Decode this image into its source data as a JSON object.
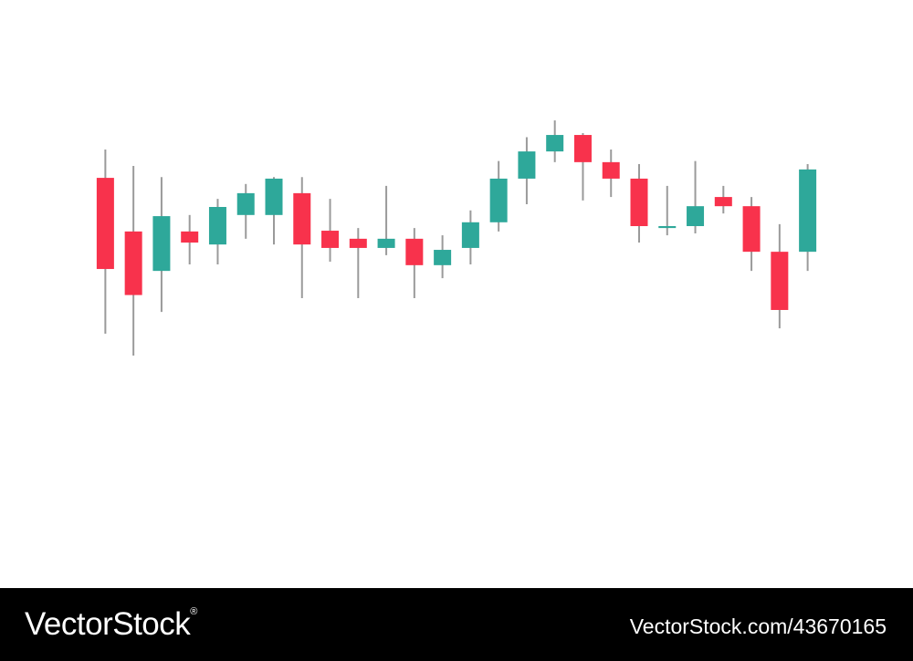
{
  "chart_data": {
    "type": "candlestick",
    "title": "",
    "xlabel": "",
    "ylabel": "",
    "grid": false,
    "axes_visible": false,
    "ylim": [
      0,
      100
    ],
    "up_color": "#2ea89a",
    "down_color": "#f8324c",
    "wick_color": "#9a9a9a",
    "candles": [
      {
        "open": 72.6,
        "high": 80.0,
        "low": 31.9,
        "close": 48.8
      },
      {
        "open": 58.6,
        "high": 75.7,
        "low": 26.2,
        "close": 42.0
      },
      {
        "open": 48.3,
        "high": 72.8,
        "low": 37.6,
        "close": 62.6
      },
      {
        "open": 58.6,
        "high": 62.9,
        "low": 50.0,
        "close": 55.7
      },
      {
        "open": 55.2,
        "high": 67.1,
        "low": 50.0,
        "close": 65.0
      },
      {
        "open": 62.9,
        "high": 71.0,
        "low": 56.7,
        "close": 68.6
      },
      {
        "open": 62.9,
        "high": 72.8,
        "low": 55.2,
        "close": 72.4
      },
      {
        "open": 68.6,
        "high": 72.8,
        "low": 41.2,
        "close": 55.2
      },
      {
        "open": 58.8,
        "high": 67.1,
        "low": 50.7,
        "close": 54.3
      },
      {
        "open": 56.7,
        "high": 59.5,
        "low": 41.2,
        "close": 54.3
      },
      {
        "open": 54.3,
        "high": 70.5,
        "low": 52.4,
        "close": 56.7
      },
      {
        "open": 56.7,
        "high": 59.5,
        "low": 41.2,
        "close": 49.8
      },
      {
        "open": 49.8,
        "high": 57.6,
        "low": 46.4,
        "close": 53.8
      },
      {
        "open": 54.3,
        "high": 64.1,
        "low": 50.0,
        "close": 61.0
      },
      {
        "open": 61.0,
        "high": 77.0,
        "low": 58.6,
        "close": 72.4
      },
      {
        "open": 72.4,
        "high": 83.2,
        "low": 65.7,
        "close": 79.5
      },
      {
        "open": 79.5,
        "high": 87.6,
        "low": 76.7,
        "close": 83.8
      },
      {
        "open": 83.8,
        "high": 84.3,
        "low": 66.7,
        "close": 76.7
      },
      {
        "open": 76.7,
        "high": 80.0,
        "low": 67.6,
        "close": 72.4
      },
      {
        "open": 72.4,
        "high": 76.2,
        "low": 55.7,
        "close": 60.0
      },
      {
        "open": 59.5,
        "high": 70.5,
        "low": 57.6,
        "close": 60.0
      },
      {
        "open": 60.0,
        "high": 77.0,
        "low": 58.1,
        "close": 65.2
      },
      {
        "open": 67.6,
        "high": 70.5,
        "low": 63.3,
        "close": 65.2
      },
      {
        "open": 65.2,
        "high": 67.6,
        "low": 48.3,
        "close": 53.3
      },
      {
        "open": 53.3,
        "high": 60.5,
        "low": 33.3,
        "close": 38.1
      },
      {
        "open": 53.3,
        "high": 76.2,
        "low": 48.3,
        "close": 74.8
      }
    ]
  },
  "footer": {
    "logo": "VectorStock",
    "registered_mark": "®",
    "id_text": "VectorStock.com/43670165",
    "background": "#000000",
    "text_color": "#ffffff"
  }
}
